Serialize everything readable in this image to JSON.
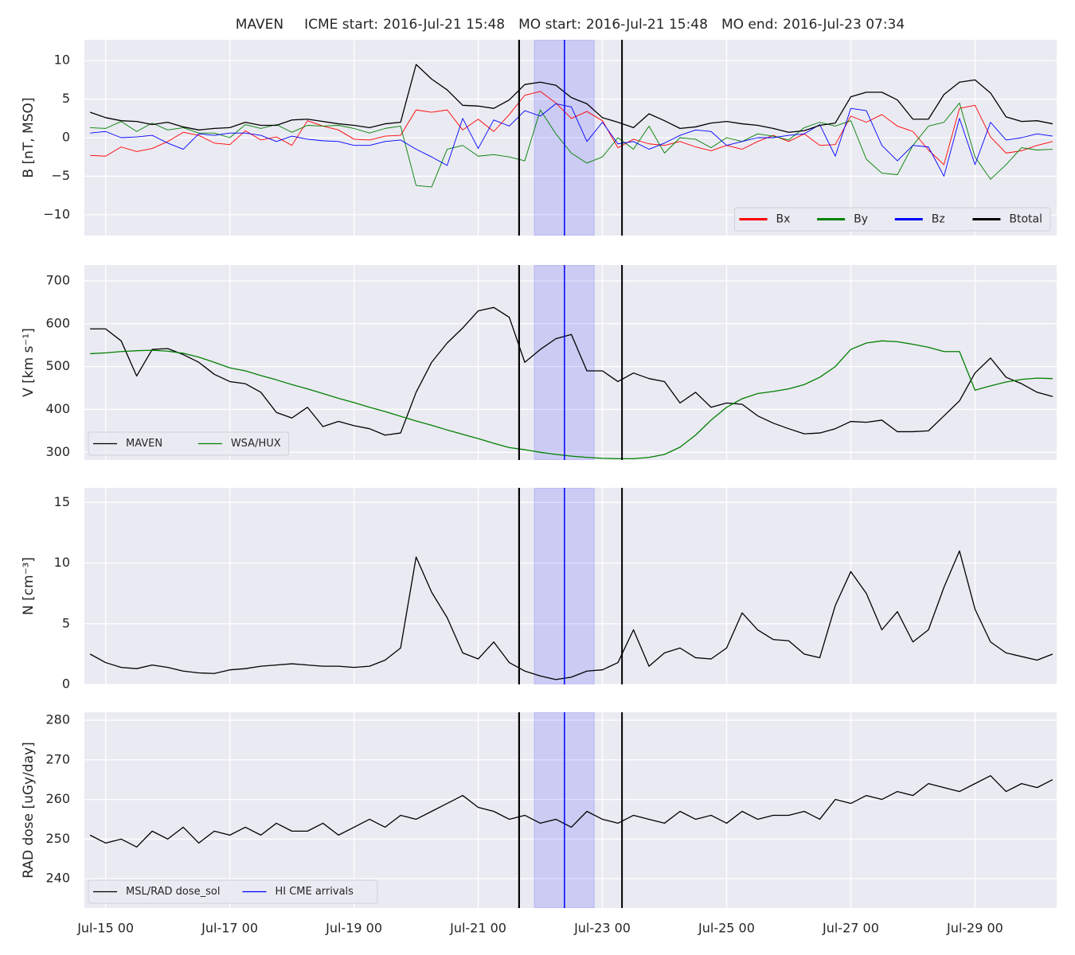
{
  "header": {
    "title": "MAVEN",
    "events": [
      {
        "label": "ICME start:",
        "time": "2016-Jul-21 15:48",
        "color": "#000000"
      },
      {
        "label": "MO start:",
        "time": "2016-Jul-21 15:48",
        "color": "#000000"
      },
      {
        "label": "MO end:",
        "time": "2016-Jul-23 07:34",
        "color": "#000000"
      }
    ]
  },
  "hi_arrival": {
    "name": "HI CME arrivals",
    "color": "#0000ff",
    "time": "Jul-22 09:20",
    "window": [
      "Jul-21 21:40",
      "Jul-22 20:50"
    ]
  },
  "chart_data": [
    {
      "type": "line",
      "ylabel": "B [nT, MSO]",
      "x": [
        "Jul-14 18",
        "Jul-15 00",
        "Jul-15 06",
        "Jul-15 12",
        "Jul-15 18",
        "Jul-16 00",
        "Jul-16 06",
        "Jul-16 12",
        "Jul-16 18",
        "Jul-17 00",
        "Jul-17 06",
        "Jul-17 12",
        "Jul-17 18",
        "Jul-18 00",
        "Jul-18 06",
        "Jul-18 12",
        "Jul-18 18",
        "Jul-19 00",
        "Jul-19 06",
        "Jul-19 12",
        "Jul-19 18",
        "Jul-20 00",
        "Jul-20 06",
        "Jul-20 12",
        "Jul-20 18",
        "Jul-21 00",
        "Jul-21 06",
        "Jul-21 12",
        "Jul-21 18",
        "Jul-22 00",
        "Jul-22 06",
        "Jul-22 12",
        "Jul-22 18",
        "Jul-23 00",
        "Jul-23 06",
        "Jul-23 12",
        "Jul-23 18",
        "Jul-24 00",
        "Jul-24 06",
        "Jul-24 12",
        "Jul-24 18",
        "Jul-25 00",
        "Jul-25 06",
        "Jul-25 12",
        "Jul-25 18",
        "Jul-26 00",
        "Jul-26 06",
        "Jul-26 12",
        "Jul-26 18",
        "Jul-27 00",
        "Jul-27 06",
        "Jul-27 12",
        "Jul-27 18",
        "Jul-28 00",
        "Jul-28 06",
        "Jul-28 12",
        "Jul-28 18",
        "Jul-29 00",
        "Jul-29 06",
        "Jul-29 12",
        "Jul-29 18",
        "Jul-30 00",
        "Jul-30 06"
      ],
      "xlim": [
        "Jul-14 15:48",
        "Jul-30 07:34"
      ],
      "xticks": [
        "Jul-15 00",
        "Jul-17 00",
        "Jul-19 00",
        "Jul-21 00",
        "Jul-23 00",
        "Jul-25 00",
        "Jul-27 00",
        "Jul-29 00"
      ],
      "ylim": [
        -12.7,
        12.7
      ],
      "yticks": [
        {
          "value": -10,
          "label": "−10"
        },
        {
          "value": -5,
          "label": "−5"
        },
        0,
        5,
        10
      ],
      "grid": true,
      "legend": "lower right",
      "series": [
        {
          "name": "Bx",
          "color": "#ff0000",
          "values": [
            -2.3,
            -2.4,
            -1.2,
            -1.8,
            -1.4,
            -0.5,
            0.7,
            0.3,
            -0.7,
            -0.9,
            0.9,
            -0.3,
            0.1,
            -1.0,
            2.2,
            1.5,
            1.0,
            -0.2,
            -0.3,
            0.2,
            0.3,
            3.6,
            3.3,
            3.6,
            1.0,
            2.4,
            0.8,
            3.0,
            5.5,
            6.0,
            4.5,
            2.5,
            3.4,
            2.2,
            -1.3,
            -0.2,
            -0.8,
            -1.0,
            -0.5,
            -1.2,
            -1.7,
            -1.0,
            -1.5,
            -0.5,
            0.3,
            -0.5,
            0.5,
            -1.0,
            -0.9,
            2.8,
            2.0,
            3.0,
            1.5,
            0.8,
            -1.6,
            -3.5,
            3.8,
            4.2,
            0.1,
            -2.0,
            -1.7,
            -1.0,
            -0.5
          ]
        },
        {
          "name": "By",
          "color": "#008000",
          "values": [
            1.3,
            1.2,
            2.1,
            0.8,
            1.9,
            1.0,
            1.3,
            0.6,
            0.6,
            0.0,
            1.7,
            1.2,
            1.7,
            0.7,
            1.6,
            1.5,
            1.6,
            1.2,
            0.6,
            1.2,
            1.5,
            -6.2,
            -6.4,
            -1.5,
            -1.0,
            -2.4,
            -2.2,
            -2.5,
            -3.0,
            3.6,
            0.5,
            -2.0,
            -3.3,
            -2.5,
            0.0,
            -1.5,
            1.5,
            -2.0,
            0.0,
            -0.2,
            -1.3,
            0.0,
            -0.5,
            0.5,
            0.2,
            -0.3,
            1.3,
            2.0,
            1.5,
            2.2,
            -2.8,
            -4.6,
            -4.8,
            -1.0,
            1.5,
            2.0,
            4.5,
            -2.5,
            -5.4,
            -3.5,
            -1.3,
            -1.6,
            -1.5
          ]
        },
        {
          "name": "Bz",
          "color": "#0000ff",
          "values": [
            0.6,
            0.8,
            0.0,
            0.1,
            0.3,
            -0.7,
            -1.5,
            0.5,
            0.3,
            0.6,
            0.6,
            0.3,
            -0.5,
            0.2,
            -0.2,
            -0.4,
            -0.5,
            -1.0,
            -1.0,
            -0.5,
            -0.3,
            -1.5,
            -2.5,
            -3.6,
            2.5,
            -1.4,
            2.3,
            1.5,
            3.5,
            2.8,
            4.4,
            4.0,
            -0.5,
            2.0,
            -0.8,
            -0.5,
            -1.5,
            -0.7,
            0.3,
            1.0,
            0.8,
            -1.0,
            -0.5,
            0.0,
            0.0,
            0.3,
            0.5,
            1.7,
            -2.4,
            3.8,
            3.5,
            -1.0,
            -3.0,
            -1.0,
            -1.2,
            -5.0,
            2.5,
            -3.5,
            2.0,
            -0.3,
            0.0,
            0.5,
            0.2
          ]
        },
        {
          "name": "Btotal",
          "color": "#000000",
          "values": [
            3.3,
            2.6,
            2.2,
            2.1,
            1.7,
            2.0,
            1.4,
            1.0,
            1.2,
            1.3,
            2.0,
            1.6,
            1.6,
            2.3,
            2.4,
            2.1,
            1.8,
            1.6,
            1.3,
            1.8,
            2.0,
            9.5,
            7.6,
            6.2,
            4.2,
            4.1,
            3.8,
            4.9,
            6.9,
            7.2,
            6.8,
            5.2,
            4.4,
            2.6,
            2.0,
            1.3,
            3.1,
            2.2,
            1.2,
            1.4,
            1.9,
            2.1,
            1.8,
            1.6,
            1.2,
            0.7,
            0.9,
            1.6,
            1.9,
            5.3,
            5.9,
            5.9,
            4.9,
            2.4,
            2.4,
            5.6,
            7.2,
            7.5,
            5.8,
            2.7,
            2.1,
            2.2,
            1.8
          ]
        }
      ]
    },
    {
      "type": "line",
      "ylabel": "V [km s⁻¹]",
      "x": [
        "Jul-14 18",
        "Jul-15 00",
        "Jul-15 06",
        "Jul-15 12",
        "Jul-15 18",
        "Jul-16 00",
        "Jul-16 06",
        "Jul-16 12",
        "Jul-16 18",
        "Jul-17 00",
        "Jul-17 06",
        "Jul-17 12",
        "Jul-17 18",
        "Jul-18 00",
        "Jul-18 06",
        "Jul-18 12",
        "Jul-18 18",
        "Jul-19 00",
        "Jul-19 06",
        "Jul-19 12",
        "Jul-19 18",
        "Jul-20 00",
        "Jul-20 06",
        "Jul-20 12",
        "Jul-20 18",
        "Jul-21 00",
        "Jul-21 06",
        "Jul-21 12",
        "Jul-21 18",
        "Jul-22 00",
        "Jul-22 06",
        "Jul-22 12",
        "Jul-22 18",
        "Jul-23 00",
        "Jul-23 06",
        "Jul-23 12",
        "Jul-23 18",
        "Jul-24 00",
        "Jul-24 06",
        "Jul-24 12",
        "Jul-24 18",
        "Jul-25 00",
        "Jul-25 06",
        "Jul-25 12",
        "Jul-25 18",
        "Jul-26 00",
        "Jul-26 06",
        "Jul-26 12",
        "Jul-26 18",
        "Jul-27 00",
        "Jul-27 06",
        "Jul-27 12",
        "Jul-27 18",
        "Jul-28 00",
        "Jul-28 06",
        "Jul-28 12",
        "Jul-28 18",
        "Jul-29 00",
        "Jul-29 06",
        "Jul-29 12",
        "Jul-29 18",
        "Jul-30 00",
        "Jul-30 06"
      ],
      "xlim": [
        "Jul-14 15:48",
        "Jul-30 07:34"
      ],
      "xticks": [
        "Jul-15 00",
        "Jul-17 00",
        "Jul-19 00",
        "Jul-21 00",
        "Jul-23 00",
        "Jul-25 00",
        "Jul-27 00",
        "Jul-29 00"
      ],
      "ylim": [
        282,
        737
      ],
      "yticks": [
        300,
        400,
        500,
        600,
        700
      ],
      "grid": true,
      "legend": "lower left",
      "series": [
        {
          "name": "MAVEN",
          "color": "#000000",
          "values": [
            588,
            588,
            560,
            478,
            540,
            542,
            528,
            510,
            482,
            465,
            460,
            440,
            393,
            380,
            405,
            360,
            372,
            362,
            355,
            340,
            345,
            440,
            510,
            555,
            590,
            630,
            638,
            615,
            510,
            540,
            565,
            575,
            490,
            490,
            465,
            485,
            472,
            465,
            415,
            440,
            405,
            415,
            412,
            385,
            368,
            355,
            343,
            345,
            355,
            372,
            370,
            375,
            348,
            348,
            350,
            385,
            420,
            485,
            520,
            475,
            460,
            440,
            430
          ]
        },
        {
          "name": "WSA/HUX",
          "color": "#008000",
          "values": [
            530,
            532,
            535,
            537,
            538,
            536,
            531,
            522,
            510,
            497,
            490,
            479,
            469,
            458,
            448,
            437,
            426,
            416,
            405,
            395,
            384,
            373,
            363,
            352,
            342,
            332,
            321,
            311,
            306,
            300,
            295,
            291,
            288,
            286,
            285,
            285,
            288,
            295,
            312,
            340,
            375,
            405,
            425,
            437,
            442,
            448,
            458,
            475,
            500,
            540,
            555,
            560,
            558,
            552,
            545,
            535,
            535,
            445,
            455,
            464,
            470,
            473,
            472
          ]
        }
      ]
    },
    {
      "type": "line",
      "ylabel": "N [cm⁻³]",
      "x": [
        "Jul-14 18",
        "Jul-15 00",
        "Jul-15 06",
        "Jul-15 12",
        "Jul-15 18",
        "Jul-16 00",
        "Jul-16 06",
        "Jul-16 12",
        "Jul-16 18",
        "Jul-17 00",
        "Jul-17 06",
        "Jul-17 12",
        "Jul-17 18",
        "Jul-18 00",
        "Jul-18 06",
        "Jul-18 12",
        "Jul-18 18",
        "Jul-19 00",
        "Jul-19 06",
        "Jul-19 12",
        "Jul-19 18",
        "Jul-20 00",
        "Jul-20 06",
        "Jul-20 12",
        "Jul-20 18",
        "Jul-21 00",
        "Jul-21 06",
        "Jul-21 12",
        "Jul-21 18",
        "Jul-22 00",
        "Jul-22 06",
        "Jul-22 12",
        "Jul-22 18",
        "Jul-23 00",
        "Jul-23 06",
        "Jul-23 12",
        "Jul-23 18",
        "Jul-24 00",
        "Jul-24 06",
        "Jul-24 12",
        "Jul-24 18",
        "Jul-25 00",
        "Jul-25 06",
        "Jul-25 12",
        "Jul-25 18",
        "Jul-26 00",
        "Jul-26 06",
        "Jul-26 12",
        "Jul-26 18",
        "Jul-27 00",
        "Jul-27 06",
        "Jul-27 12",
        "Jul-27 18",
        "Jul-28 00",
        "Jul-28 06",
        "Jul-28 12",
        "Jul-28 18",
        "Jul-29 00",
        "Jul-29 06",
        "Jul-29 12",
        "Jul-29 18",
        "Jul-30 00",
        "Jul-30 06"
      ],
      "xlim": [
        "Jul-14 15:48",
        "Jul-30 07:34"
      ],
      "xticks": [
        "Jul-15 00",
        "Jul-17 00",
        "Jul-19 00",
        "Jul-21 00",
        "Jul-23 00",
        "Jul-25 00",
        "Jul-27 00",
        "Jul-29 00"
      ],
      "ylim": [
        0,
        16.2
      ],
      "yticks": [
        0,
        5,
        10,
        15
      ],
      "grid": true,
      "series": [
        {
          "color": "#000000",
          "values": [
            2.5,
            1.8,
            1.4,
            1.3,
            1.6,
            1.4,
            1.1,
            0.95,
            0.9,
            1.2,
            1.3,
            1.5,
            1.6,
            1.7,
            1.6,
            1.5,
            1.5,
            1.4,
            1.5,
            2.0,
            3.0,
            10.5,
            7.6,
            5.5,
            2.6,
            2.1,
            3.5,
            1.8,
            1.1,
            0.7,
            0.4,
            0.6,
            1.1,
            1.2,
            1.8,
            4.5,
            1.5,
            2.6,
            3.0,
            2.2,
            2.1,
            3.0,
            5.9,
            4.5,
            3.7,
            3.6,
            2.5,
            2.2,
            6.5,
            9.3,
            7.5,
            4.5,
            6.0,
            3.5,
            4.5,
            8.0,
            11.0,
            6.2,
            3.5,
            2.6,
            2.3,
            2.0,
            2.5
          ]
        }
      ]
    },
    {
      "type": "line",
      "ylabel": "RAD dose [uGy/day]",
      "x": [
        "Jul-14 18",
        "Jul-15 00",
        "Jul-15 06",
        "Jul-15 12",
        "Jul-15 18",
        "Jul-16 00",
        "Jul-16 06",
        "Jul-16 12",
        "Jul-16 18",
        "Jul-17 00",
        "Jul-17 06",
        "Jul-17 12",
        "Jul-17 18",
        "Jul-18 00",
        "Jul-18 06",
        "Jul-18 12",
        "Jul-18 18",
        "Jul-19 00",
        "Jul-19 06",
        "Jul-19 12",
        "Jul-19 18",
        "Jul-20 00",
        "Jul-20 06",
        "Jul-20 12",
        "Jul-20 18",
        "Jul-21 00",
        "Jul-21 06",
        "Jul-21 12",
        "Jul-21 18",
        "Jul-22 00",
        "Jul-22 06",
        "Jul-22 12",
        "Jul-22 18",
        "Jul-23 00",
        "Jul-23 06",
        "Jul-23 12",
        "Jul-23 18",
        "Jul-24 00",
        "Jul-24 06",
        "Jul-24 12",
        "Jul-24 18",
        "Jul-25 00",
        "Jul-25 06",
        "Jul-25 12",
        "Jul-25 18",
        "Jul-26 00",
        "Jul-26 06",
        "Jul-26 12",
        "Jul-26 18",
        "Jul-27 00",
        "Jul-27 06",
        "Jul-27 12",
        "Jul-27 18",
        "Jul-28 00",
        "Jul-28 06",
        "Jul-28 12",
        "Jul-28 18",
        "Jul-29 00",
        "Jul-29 06",
        "Jul-29 12",
        "Jul-29 18",
        "Jul-30 00",
        "Jul-30 06"
      ],
      "xlim": [
        "Jul-14 15:48",
        "Jul-30 07:34"
      ],
      "xticks": [
        "Jul-15 00",
        "Jul-17 00",
        "Jul-19 00",
        "Jul-21 00",
        "Jul-23 00",
        "Jul-25 00",
        "Jul-27 00",
        "Jul-29 00"
      ],
      "ylim": [
        232.6,
        282
      ],
      "yticks": [
        240,
        250,
        260,
        270,
        280
      ],
      "grid": true,
      "legend": "lower left",
      "legend_includes_arrivals": true,
      "series": [
        {
          "name": "MSL/RAD dose_sol",
          "color": "#000000",
          "values": [
            251,
            249,
            250,
            248,
            252,
            250,
            253,
            249,
            252,
            251,
            253,
            251,
            254,
            252,
            252,
            254,
            251,
            253,
            255,
            253,
            256,
            255,
            257,
            259,
            261,
            258,
            257,
            255,
            256,
            254,
            255,
            253,
            257,
            255,
            254,
            256,
            255,
            254,
            257,
            255,
            256,
            254,
            257,
            255,
            256,
            256,
            257,
            255,
            260,
            259,
            261,
            260,
            262,
            261,
            264,
            263,
            262,
            264,
            266,
            262,
            264,
            263,
            265
          ]
        }
      ]
    }
  ]
}
